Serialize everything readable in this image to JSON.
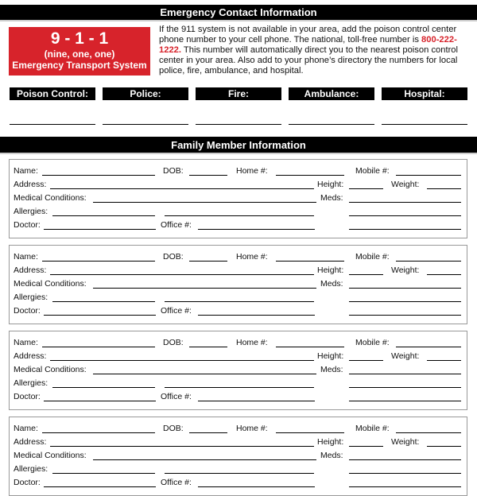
{
  "header": {
    "title": "Emergency Contact Information"
  },
  "emergency_box": {
    "number": "9 - 1 - 1",
    "spelled": "(nine, one, one)",
    "system": "Emergency Transport System"
  },
  "intro": {
    "before": "If the 911 system is not available in your area, add the poison control center phone number to your cell phone. The national, toll-free number is ",
    "phone": "800-222-1222.",
    "after": " This number will automatically direct you to the nearest poison control center in your area. Also add to your phone’s directory the numbers for local police, fire, ambulance, and hospital."
  },
  "contacts": [
    "Poison Control:",
    "Police:",
    "Fire:",
    "Ambulance:",
    "Hospital:"
  ],
  "family": {
    "title": "Family Member Information",
    "labels": {
      "name": "Name:",
      "dob": "DOB:",
      "home": "Home #:",
      "mobile": "Mobile #:",
      "address": "Address:",
      "height": "Height:",
      "weight": "Weight:",
      "medical": "Medical Conditions:",
      "meds": "Meds:",
      "allergies": "Allergies:",
      "doctor": "Doctor:",
      "office": "Office #:"
    },
    "card_count": 4
  },
  "colors": {
    "accent": "#d7232b",
    "bar": "#000000"
  }
}
